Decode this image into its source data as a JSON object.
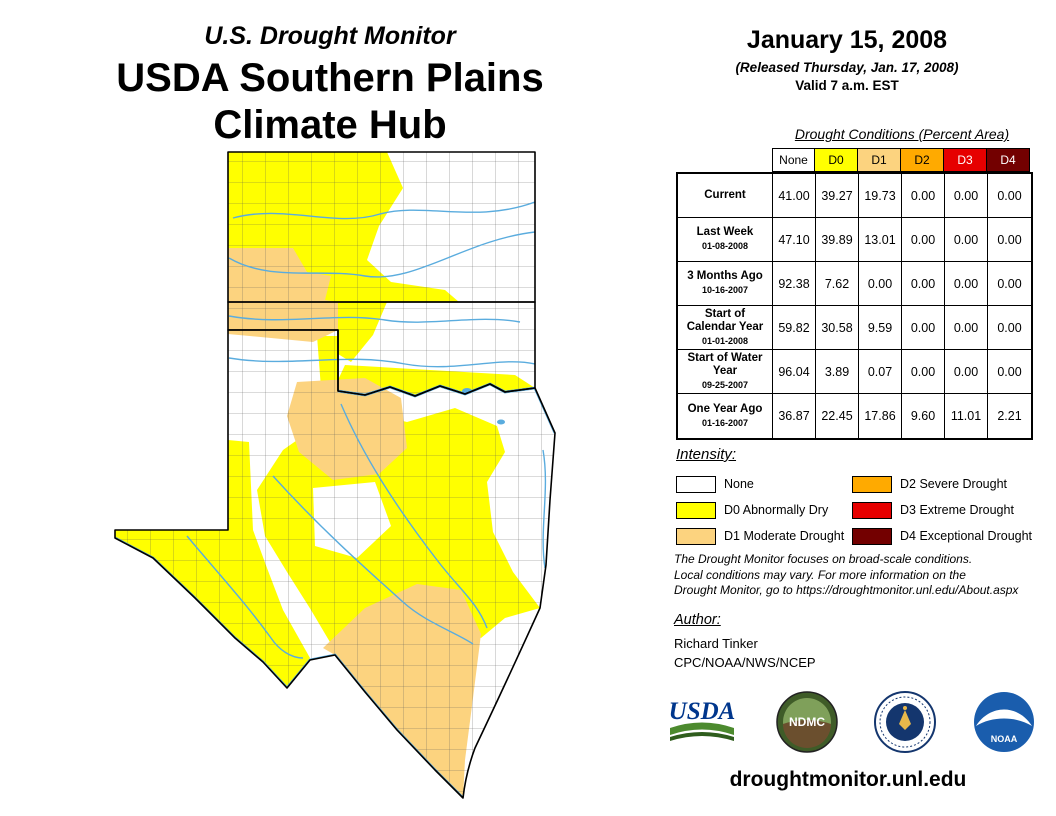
{
  "colors": {
    "none": "#FFFFFF",
    "d0": "#FFFF00",
    "d1": "#FCD37F",
    "d2": "#FFAA00",
    "d3": "#E60000",
    "d4": "#730000",
    "river": "#5AACDE",
    "usda_blue": "#00368C",
    "usda_green": "#4C8A2E",
    "noaa_blue": "#1A5DAD",
    "commerce_navy": "#14366E"
  },
  "header": {
    "title_small": "U.S. Drought Monitor",
    "title_line1": "USDA Southern Plains",
    "title_line2": "Climate Hub"
  },
  "date_block": {
    "date": "January 15, 2008",
    "released": "(Released Thursday, Jan. 17, 2008)",
    "valid": "Valid 7 a.m. EST"
  },
  "table": {
    "title": "Drought Conditions (Percent Area)",
    "columns": [
      {
        "key": "none",
        "label": "None"
      },
      {
        "key": "d0",
        "label": "D0"
      },
      {
        "key": "d1",
        "label": "D1"
      },
      {
        "key": "d2",
        "label": "D2"
      },
      {
        "key": "d3",
        "label": "D3"
      },
      {
        "key": "d4",
        "label": "D4"
      }
    ],
    "rows": [
      {
        "label": "Current",
        "sublabel": "",
        "values": [
          "41.00",
          "39.27",
          "19.73",
          "0.00",
          "0.00",
          "0.00"
        ]
      },
      {
        "label": "Last Week",
        "sublabel": "01-08-2008",
        "values": [
          "47.10",
          "39.89",
          "13.01",
          "0.00",
          "0.00",
          "0.00"
        ]
      },
      {
        "label": "3 Months Ago",
        "sublabel": "10-16-2007",
        "values": [
          "92.38",
          "7.62",
          "0.00",
          "0.00",
          "0.00",
          "0.00"
        ]
      },
      {
        "label": "Start of Calendar Year",
        "sublabel": "01-01-2008",
        "values": [
          "59.82",
          "30.58",
          "9.59",
          "0.00",
          "0.00",
          "0.00"
        ]
      },
      {
        "label": "Start of Water Year",
        "sublabel": "09-25-2007",
        "values": [
          "96.04",
          "3.89",
          "0.07",
          "0.00",
          "0.00",
          "0.00"
        ]
      },
      {
        "label": "One Year Ago",
        "sublabel": "01-16-2007",
        "values": [
          "36.87",
          "22.45",
          "17.86",
          "9.60",
          "11.01",
          "2.21"
        ]
      }
    ]
  },
  "legend": {
    "title": "Intensity:",
    "items": [
      {
        "key": "none",
        "label": "None"
      },
      {
        "key": "d0",
        "label": "D0 Abnormally Dry"
      },
      {
        "key": "d1",
        "label": "D1 Moderate Drought"
      },
      {
        "key": "d2",
        "label": "D2 Severe Drought"
      },
      {
        "key": "d3",
        "label": "D3 Extreme Drought"
      },
      {
        "key": "d4",
        "label": "D4 Exceptional Drought"
      }
    ]
  },
  "disclaimer_lines": [
    "The Drought Monitor focuses on broad-scale conditions.",
    "Local conditions may vary. For more information on the",
    "Drought Monitor, go to https://droughtmonitor.unl.edu/About.aspx"
  ],
  "author": {
    "title": "Author:",
    "name": "Richard Tinker",
    "org": "CPC/NOAA/NWS/NCEP"
  },
  "logos": {
    "usda_label": "USDA",
    "ndmc_label": "NDMC",
    "noaa_label": "NOAA"
  },
  "footer": {
    "url": "droughtmonitor.unl.edu"
  }
}
